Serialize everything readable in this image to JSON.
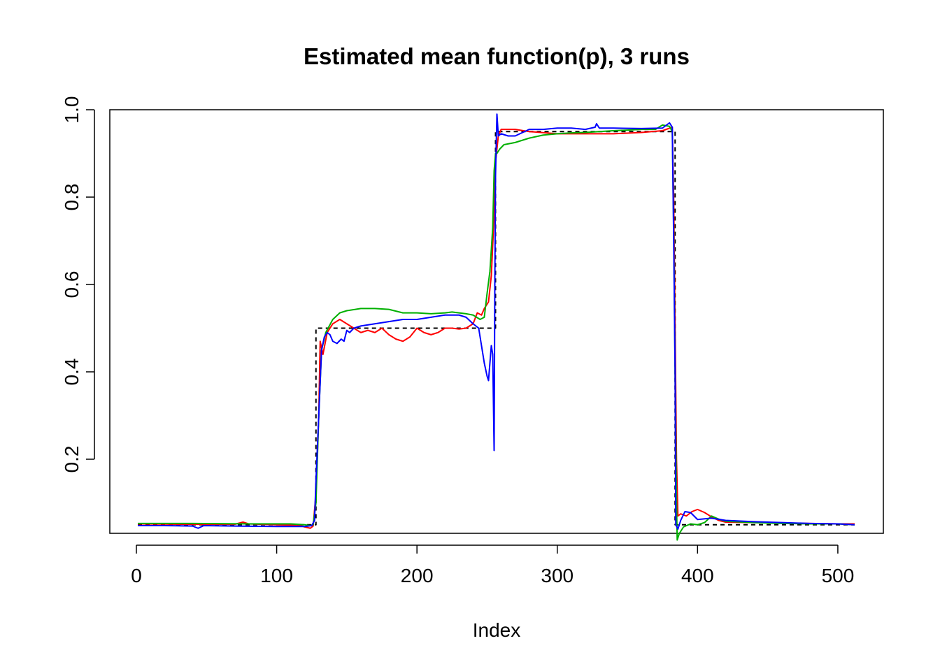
{
  "chart_data": {
    "type": "line",
    "title": "Estimated mean function(p), 3 runs",
    "xlabel": "Index",
    "ylabel": "",
    "xlim": [
      1,
      512
    ],
    "ylim": [
      0.04,
      1.0
    ],
    "x_ticks": [
      "0",
      "100",
      "200",
      "300",
      "400",
      "500"
    ],
    "y_ticks": [
      "0.2",
      "0.4",
      "0.6",
      "0.8",
      "1.0"
    ],
    "grid": false,
    "legend": "none",
    "series": [
      {
        "color": "#000000",
        "dash": true,
        "points": [
          [
            1,
            0.05
          ],
          [
            128,
            0.05
          ],
          [
            128,
            0.5
          ],
          [
            256,
            0.5
          ],
          [
            256,
            0.95
          ],
          [
            384,
            0.95
          ],
          [
            384,
            0.05
          ],
          [
            512,
            0.05
          ]
        ]
      },
      {
        "color": "#ff0000",
        "points": [
          [
            1,
            0.052
          ],
          [
            40,
            0.051
          ],
          [
            70,
            0.051
          ],
          [
            76,
            0.056
          ],
          [
            80,
            0.052
          ],
          [
            100,
            0.05
          ],
          [
            117,
            0.048
          ],
          [
            120,
            0.045
          ],
          [
            124,
            0.042
          ],
          [
            126,
            0.047
          ],
          [
            128,
            0.12
          ],
          [
            130,
            0.3
          ],
          [
            131,
            0.47
          ],
          [
            133,
            0.44
          ],
          [
            136,
            0.49
          ],
          [
            140,
            0.51
          ],
          [
            145,
            0.52
          ],
          [
            150,
            0.51
          ],
          [
            155,
            0.5
          ],
          [
            160,
            0.49
          ],
          [
            165,
            0.495
          ],
          [
            170,
            0.49
          ],
          [
            175,
            0.5
          ],
          [
            180,
            0.485
          ],
          [
            185,
            0.475
          ],
          [
            190,
            0.47
          ],
          [
            195,
            0.48
          ],
          [
            200,
            0.5
          ],
          [
            205,
            0.49
          ],
          [
            210,
            0.485
          ],
          [
            215,
            0.49
          ],
          [
            220,
            0.5
          ],
          [
            225,
            0.5
          ],
          [
            230,
            0.498
          ],
          [
            235,
            0.5
          ],
          [
            240,
            0.51
          ],
          [
            243,
            0.535
          ],
          [
            246,
            0.53
          ],
          [
            248,
            0.545
          ],
          [
            251,
            0.56
          ],
          [
            253,
            0.62
          ],
          [
            255,
            0.76
          ],
          [
            256,
            0.88
          ],
          [
            257,
            0.91
          ],
          [
            258,
            0.94
          ],
          [
            260,
            0.955
          ],
          [
            270,
            0.955
          ],
          [
            280,
            0.95
          ],
          [
            300,
            0.945
          ],
          [
            320,
            0.945
          ],
          [
            340,
            0.945
          ],
          [
            360,
            0.948
          ],
          [
            375,
            0.952
          ],
          [
            382,
            0.96
          ],
          [
            383,
            0.8
          ],
          [
            384,
            0.5
          ],
          [
            385,
            0.2
          ],
          [
            386,
            0.07
          ],
          [
            388,
            0.075
          ],
          [
            392,
            0.07
          ],
          [
            396,
            0.08
          ],
          [
            400,
            0.085
          ],
          [
            405,
            0.078
          ],
          [
            410,
            0.068
          ],
          [
            415,
            0.06
          ],
          [
            420,
            0.056
          ],
          [
            440,
            0.055
          ],
          [
            460,
            0.054
          ],
          [
            480,
            0.053
          ],
          [
            500,
            0.052
          ],
          [
            512,
            0.052
          ]
        ]
      },
      {
        "color": "#00b000",
        "points": [
          [
            1,
            0.053
          ],
          [
            40,
            0.053
          ],
          [
            80,
            0.052
          ],
          [
            110,
            0.052
          ],
          [
            120,
            0.05
          ],
          [
            124,
            0.048
          ],
          [
            126,
            0.05
          ],
          [
            128,
            0.1
          ],
          [
            130,
            0.3
          ],
          [
            132,
            0.45
          ],
          [
            135,
            0.49
          ],
          [
            140,
            0.52
          ],
          [
            145,
            0.535
          ],
          [
            150,
            0.54
          ],
          [
            160,
            0.545
          ],
          [
            170,
            0.545
          ],
          [
            180,
            0.543
          ],
          [
            190,
            0.535
          ],
          [
            200,
            0.535
          ],
          [
            210,
            0.533
          ],
          [
            220,
            0.535
          ],
          [
            225,
            0.537
          ],
          [
            230,
            0.535
          ],
          [
            235,
            0.533
          ],
          [
            240,
            0.53
          ],
          [
            245,
            0.52
          ],
          [
            248,
            0.525
          ],
          [
            250,
            0.58
          ],
          [
            252,
            0.63
          ],
          [
            254,
            0.73
          ],
          [
            255,
            0.86
          ],
          [
            256,
            0.9
          ],
          [
            257,
            0.9
          ],
          [
            259,
            0.91
          ],
          [
            262,
            0.92
          ],
          [
            270,
            0.925
          ],
          [
            280,
            0.935
          ],
          [
            290,
            0.942
          ],
          [
            300,
            0.945
          ],
          [
            310,
            0.947
          ],
          [
            320,
            0.948
          ],
          [
            340,
            0.952
          ],
          [
            360,
            0.955
          ],
          [
            370,
            0.955
          ],
          [
            375,
            0.965
          ],
          [
            380,
            0.962
          ],
          [
            382,
            0.95
          ],
          [
            383,
            0.72
          ],
          [
            384,
            0.4
          ],
          [
            385,
            0.1
          ],
          [
            385.5,
            0.015
          ],
          [
            387,
            0.03
          ],
          [
            390,
            0.045
          ],
          [
            395,
            0.052
          ],
          [
            400,
            0.05
          ],
          [
            405,
            0.055
          ],
          [
            410,
            0.07
          ],
          [
            415,
            0.063
          ],
          [
            420,
            0.058
          ],
          [
            440,
            0.055
          ],
          [
            460,
            0.053
          ],
          [
            480,
            0.052
          ],
          [
            500,
            0.052
          ],
          [
            512,
            0.05
          ]
        ]
      },
      {
        "color": "#0000ff",
        "points": [
          [
            1,
            0.048
          ],
          [
            20,
            0.048
          ],
          [
            40,
            0.047
          ],
          [
            44,
            0.042
          ],
          [
            48,
            0.048
          ],
          [
            70,
            0.047
          ],
          [
            100,
            0.046
          ],
          [
            120,
            0.046
          ],
          [
            125,
            0.048
          ],
          [
            127,
            0.06
          ],
          [
            128,
            0.15
          ],
          [
            130,
            0.3
          ],
          [
            132,
            0.45
          ],
          [
            134,
            0.48
          ],
          [
            136,
            0.49
          ],
          [
            138,
            0.485
          ],
          [
            140,
            0.47
          ],
          [
            143,
            0.465
          ],
          [
            146,
            0.475
          ],
          [
            148,
            0.47
          ],
          [
            150,
            0.495
          ],
          [
            152,
            0.49
          ],
          [
            155,
            0.5
          ],
          [
            160,
            0.505
          ],
          [
            170,
            0.51
          ],
          [
            180,
            0.515
          ],
          [
            190,
            0.52
          ],
          [
            200,
            0.52
          ],
          [
            210,
            0.525
          ],
          [
            220,
            0.53
          ],
          [
            230,
            0.53
          ],
          [
            235,
            0.525
          ],
          [
            240,
            0.51
          ],
          [
            244,
            0.5
          ],
          [
            246,
            0.46
          ],
          [
            248,
            0.42
          ],
          [
            250,
            0.39
          ],
          [
            251,
            0.38
          ],
          [
            253,
            0.46
          ],
          [
            254,
            0.44
          ],
          [
            255,
            0.22
          ],
          [
            255.5,
            0.6
          ],
          [
            256,
            0.85
          ],
          [
            257,
            0.99
          ],
          [
            258,
            0.94
          ],
          [
            260,
            0.945
          ],
          [
            265,
            0.94
          ],
          [
            270,
            0.94
          ],
          [
            280,
            0.955
          ],
          [
            290,
            0.955
          ],
          [
            300,
            0.958
          ],
          [
            310,
            0.958
          ],
          [
            320,
            0.955
          ],
          [
            327,
            0.96
          ],
          [
            328,
            0.968
          ],
          [
            330,
            0.958
          ],
          [
            340,
            0.958
          ],
          [
            360,
            0.957
          ],
          [
            375,
            0.958
          ],
          [
            380,
            0.97
          ],
          [
            382,
            0.96
          ],
          [
            383,
            0.7
          ],
          [
            384,
            0.4
          ],
          [
            384.5,
            0.05
          ],
          [
            386,
            0.04
          ],
          [
            388,
            0.06
          ],
          [
            391,
            0.08
          ],
          [
            395,
            0.078
          ],
          [
            400,
            0.062
          ],
          [
            410,
            0.065
          ],
          [
            420,
            0.06
          ],
          [
            440,
            0.057
          ],
          [
            460,
            0.055
          ],
          [
            480,
            0.053
          ],
          [
            500,
            0.052
          ],
          [
            512,
            0.05
          ]
        ]
      }
    ]
  }
}
